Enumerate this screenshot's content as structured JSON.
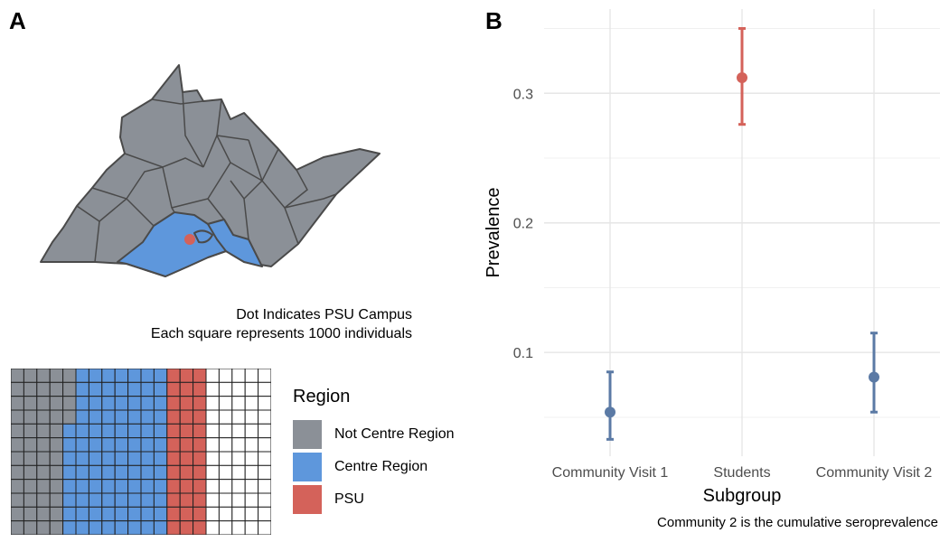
{
  "panel_a": {
    "letter": "A",
    "caption_line1": "Dot Indicates PSU Campus",
    "caption_line2": "Each square represents 1000 individuals",
    "legend": {
      "title": "Region",
      "items": [
        {
          "label": "Not Centre Region",
          "color": "#8b9097"
        },
        {
          "label": "Centre Region",
          "color": "#5e97dc"
        },
        {
          "label": "PSU",
          "color": "#d4625a"
        }
      ]
    },
    "waffle_counts": {
      "Not Centre Region": 52,
      "Centre Region": 92,
      "PSU": 36
    },
    "map_dot_color": "#d4625a"
  },
  "panel_b": {
    "letter": "B",
    "note": "Community 2 is the cumulative seroprevalence"
  },
  "chart_data": {
    "type": "scatter",
    "categories": [
      "Community Visit 1",
      "Students",
      "Community Visit 2"
    ],
    "values": [
      0.054,
      0.312,
      0.081
    ],
    "lower": [
      0.033,
      0.276,
      0.054
    ],
    "upper": [
      0.085,
      0.35,
      0.115
    ],
    "colors": [
      "#5b7aa5",
      "#d4625a",
      "#5b7aa5"
    ],
    "title": "",
    "xlabel": "Subgroup",
    "ylabel": "Prevalence",
    "ylim": [
      0.02,
      0.365
    ],
    "yticks": [
      0.1,
      0.2,
      0.3
    ],
    "ytick_labels": [
      "0.1",
      "0.2",
      "0.3"
    ],
    "grid": true,
    "legend": "none"
  }
}
